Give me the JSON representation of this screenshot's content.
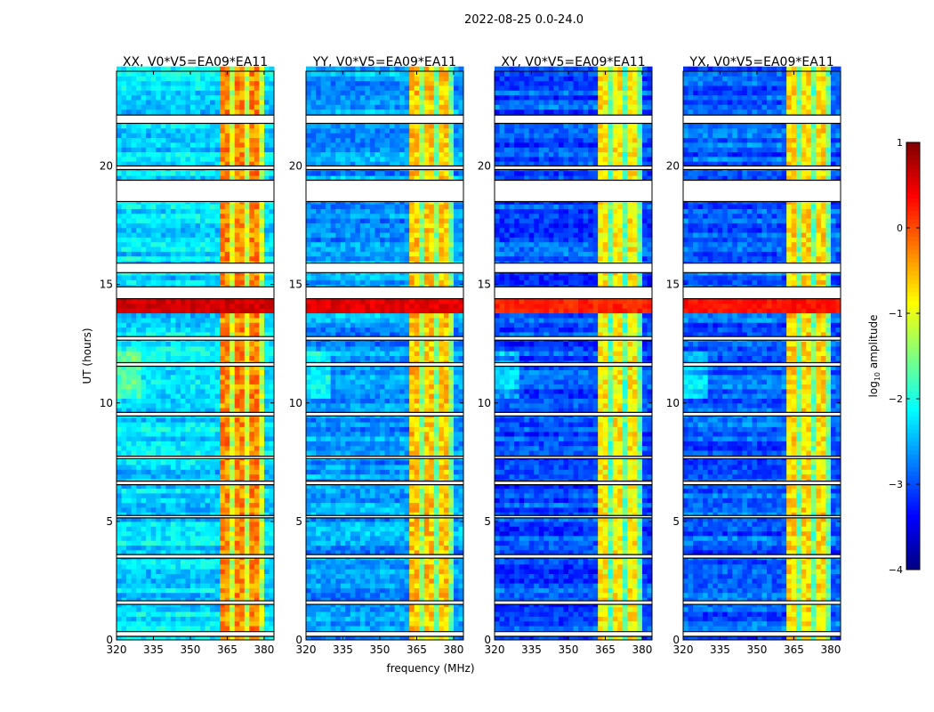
{
  "chart_data": {
    "type": "heatmap",
    "suptitle": "2022-08-25 0.0-24.0",
    "xlabel": "frequency (MHz)",
    "ylabel": "UT (hours)",
    "xlim": [
      320,
      384
    ],
    "ylim": [
      0,
      24
    ],
    "xticks": [
      "320",
      "335",
      "350",
      "365",
      "380"
    ],
    "xtick_values": [
      320,
      335,
      350,
      365,
      380
    ],
    "yticks": [
      "0",
      "5",
      "10",
      "15",
      "20"
    ],
    "ytick_values": [
      0,
      5,
      10,
      15,
      20
    ],
    "colorbar": {
      "label_prefix": "log",
      "label_sub": "10",
      "label_suffix": " amplitude",
      "range": [
        -4,
        1
      ],
      "ticks": [
        "−4",
        "−3",
        "−2",
        "−1",
        "0",
        "1"
      ],
      "tick_values": [
        -4,
        -3,
        -2,
        -1,
        0,
        1
      ],
      "colormap": "jet"
    },
    "panels": [
      {
        "title": "XX, V0*V5=EA09*EA11",
        "baseline": -2.3,
        "rfi_level": -0.3,
        "event_level": 0.6
      },
      {
        "title": "YY, V0*V5=EA09*EA11",
        "baseline": -2.6,
        "rfi_level": -0.6,
        "event_level": 0.5
      },
      {
        "title": "XY, V0*V5=EA09*EA11",
        "baseline": -3.0,
        "rfi_level": -0.8,
        "event_level": 0.2
      },
      {
        "title": "YX, V0*V5=EA09*EA11",
        "baseline": -2.9,
        "rfi_level": -0.7,
        "event_level": 0.3
      }
    ],
    "rfi_band_mhz": [
      362,
      380
    ],
    "event_hours": [
      13.6,
      14.2
    ],
    "flagged_hours": [
      [
        0.15,
        0.35
      ],
      [
        1.5,
        1.65
      ],
      [
        3.45,
        3.6
      ],
      [
        5.15,
        5.25
      ],
      [
        6.55,
        6.7
      ],
      [
        7.65,
        7.75
      ],
      [
        9.45,
        9.6
      ],
      [
        11.55,
        11.7
      ],
      [
        12.65,
        12.8
      ],
      [
        14.4,
        14.9
      ],
      [
        15.5,
        15.9
      ],
      [
        18.5,
        19.4
      ],
      [
        19.85,
        20.0
      ],
      [
        21.8,
        22.15
      ]
    ]
  }
}
